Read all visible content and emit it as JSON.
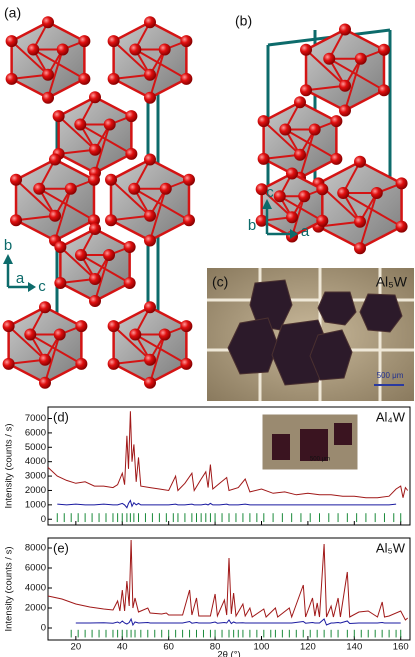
{
  "panels": {
    "a": {
      "label": "(a)",
      "axes": [
        "b",
        "a",
        "c"
      ]
    },
    "b": {
      "label": "(b)",
      "axes": [
        "c",
        "b",
        "a"
      ]
    },
    "c": {
      "label": "(c)",
      "compound": "Al₅W",
      "scale": "500 μm"
    }
  },
  "chart_data": [
    {
      "type": "line",
      "label": "(d)",
      "annotation": "Al₄W",
      "inset_scale": "500 μm",
      "ylabel": "Intensity (counts / s)",
      "show_xtick_labels": false,
      "x": [
        8,
        12,
        16,
        20,
        24,
        28,
        32,
        36,
        38,
        40,
        41,
        42,
        42.7,
        43.5,
        44.2,
        45,
        46,
        47,
        48,
        52,
        56,
        60,
        63,
        64,
        67,
        70,
        71,
        74,
        76,
        77,
        78,
        79,
        82,
        85,
        86,
        90,
        93,
        95,
        100,
        105,
        110,
        115,
        120,
        125,
        130,
        135,
        140,
        145,
        150,
        155,
        158,
        160,
        161,
        162,
        163
      ],
      "series": [
        {
          "color": "#a01818",
          "values": [
            3600,
            3000,
            2700,
            2500,
            2600,
            2300,
            2300,
            2200,
            2400,
            3200,
            2400,
            5800,
            3500,
            7500,
            4000,
            5200,
            2600,
            4300,
            2300,
            2200,
            2100,
            2000,
            3000,
            2000,
            2500,
            3200,
            2000,
            2800,
            3300,
            2200,
            3800,
            2100,
            2500,
            2900,
            2000,
            2200,
            2800,
            1900,
            2100,
            1800,
            1900,
            1700,
            1800,
            1700,
            1700,
            1600,
            1600,
            1500,
            1500,
            1600,
            2100,
            2300,
            1500,
            2200,
            2000
          ]
        },
        {
          "color": "#1a1aa0",
          "values": [
            null,
            1050,
            1000,
            1050,
            1000,
            1000,
            1050,
            1000,
            1000,
            1100,
            1000,
            800,
            1100,
            1300,
            900,
            1150,
            1000,
            1100,
            1000,
            1000,
            1000,
            1000,
            1050,
            1000,
            1000,
            1050,
            1000,
            1000,
            1050,
            1000,
            1100,
            1000,
            1000,
            1050,
            1000,
            1000,
            1050,
            1000,
            1000,
            1000,
            1000,
            1000,
            1000,
            1000,
            1000,
            1000,
            1000,
            1000,
            1000,
            1000,
            1050,
            null,
            null,
            null,
            null
          ]
        }
      ],
      "reflections": [
        12,
        15,
        18,
        21,
        24,
        27,
        30,
        33,
        36,
        38,
        40,
        42,
        43.5,
        45,
        47,
        50,
        53,
        56,
        59,
        62,
        64,
        67,
        70,
        72,
        74,
        76,
        78,
        80,
        83,
        86,
        89,
        92,
        95,
        98,
        101,
        105,
        109,
        113,
        117,
        121,
        125,
        129,
        133,
        137,
        141,
        145,
        149,
        153,
        157,
        160
      ],
      "xlim": [
        8,
        164
      ],
      "xticks": [
        20,
        40,
        60,
        80,
        100,
        120,
        140,
        160
      ],
      "ylim": [
        -400,
        7800
      ],
      "yticks": [
        0,
        1000,
        2000,
        3000,
        4000,
        5000,
        6000,
        7000
      ]
    },
    {
      "type": "line",
      "label": "(e)",
      "annotation": "Al₅W",
      "ylabel": "Intensity (counts / s)",
      "xlabel": "2θ (°)",
      "show_xtick_labels": true,
      "x": [
        8,
        14,
        20,
        26,
        32,
        36,
        38,
        39,
        40,
        41,
        42,
        43,
        43.8,
        44.6,
        45.5,
        47,
        51,
        52,
        57,
        59,
        60,
        66,
        69,
        70,
        72,
        73,
        78,
        80,
        81,
        84,
        85,
        86,
        87,
        88,
        89,
        92,
        93,
        95,
        96,
        101,
        102,
        106,
        107,
        112,
        113,
        118,
        119,
        122,
        123,
        124,
        125,
        127,
        128,
        130,
        131,
        133,
        134,
        137,
        138,
        142,
        146,
        150,
        152,
        153,
        155,
        160,
        162,
        163
      ],
      "series": [
        {
          "color": "#a01818",
          "values": [
            3200,
            2900,
            2400,
            2100,
            1900,
            1800,
            2700,
            1700,
            3800,
            1700,
            4700,
            2200,
            8800,
            2000,
            3000,
            1600,
            2000,
            1500,
            1400,
            1500,
            1300,
            1300,
            3800,
            1300,
            3000,
            1200,
            1200,
            3400,
            1200,
            2800,
            1300,
            7000,
            1400,
            3500,
            1200,
            2400,
            1200,
            2000,
            1100,
            1900,
            1100,
            2000,
            1100,
            2000,
            1100,
            4300,
            1100,
            3000,
            1200,
            2500,
            1100,
            8400,
            1100,
            2200,
            1100,
            3000,
            1100,
            5600,
            1100,
            1600,
            1700,
            1100,
            2600,
            1100,
            1200,
            1700,
            800,
            1000
          ]
        },
        {
          "color": "#1a1aa0",
          "values": [
            null,
            null,
            500,
            500,
            520,
            480,
            600,
            480,
            700,
            500,
            400,
            550,
            900,
            300,
            600,
            500,
            550,
            500,
            500,
            500,
            500,
            500,
            650,
            480,
            550,
            500,
            500,
            600,
            480,
            550,
            500,
            800,
            450,
            600,
            500,
            520,
            500,
            500,
            500,
            500,
            500,
            500,
            500,
            500,
            500,
            650,
            480,
            550,
            500,
            500,
            500,
            900,
            300,
            500,
            500,
            550,
            500,
            700,
            450,
            500,
            500,
            500,
            550,
            500,
            500,
            500,
            null,
            null
          ]
        }
      ],
      "reflections": [
        18,
        21,
        24,
        27,
        30,
        33,
        36,
        38,
        40,
        42,
        43.8,
        45.5,
        48,
        51,
        54,
        57,
        60,
        63,
        66,
        69,
        72,
        75,
        78,
        80,
        83,
        86,
        88,
        90,
        92,
        95,
        98,
        101,
        104,
        106,
        109,
        112,
        115,
        118,
        121,
        124,
        127,
        130,
        133,
        137,
        140,
        143,
        146,
        149,
        152,
        155,
        158,
        160
      ],
      "xlim": [
        8,
        164
      ],
      "xticks": [
        20,
        40,
        60,
        80,
        100,
        120,
        140,
        160
      ],
      "ylim": [
        -1200,
        9000
      ],
      "yticks": [
        0,
        2000,
        4000,
        6000,
        8000
      ]
    }
  ]
}
